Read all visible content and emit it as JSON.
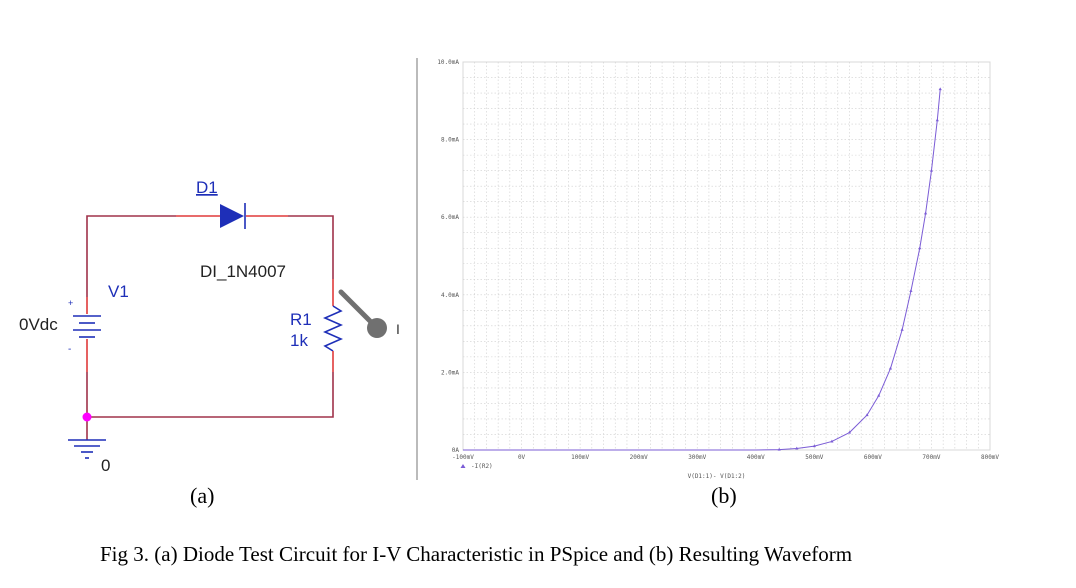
{
  "circuit": {
    "diode_ref": "D1",
    "diode_model": "DI_1N4007",
    "source_ref": "V1",
    "source_value": "0Vdc",
    "source_plus": "+",
    "source_minus": "-",
    "resistor_ref": "R1",
    "resistor_value": "1k",
    "probe_label": "I",
    "ground_label": "0"
  },
  "panel_labels": {
    "a": "(a)",
    "b": "(b)"
  },
  "caption": "Fig 3. (a) Diode Test Circuit for I-V Characteristic in PSpice and (b) Resulting Waveform",
  "colors": {
    "wire": "#a0324a",
    "pin": "#e03a3a",
    "component": "#1e2fb8",
    "node": "#ff00ff",
    "trace": "#7b5cd6",
    "probe": "#707070"
  },
  "chart_data": {
    "type": "line",
    "x_ticks": [
      "-100mV",
      "0V",
      "100mV",
      "200mV",
      "300mV",
      "400mV",
      "500mV",
      "600mV",
      "700mV",
      "800mV"
    ],
    "y_ticks": [
      "0A",
      "2.0mA",
      "4.0mA",
      "6.0mA",
      "8.0mA",
      "10.0mA"
    ],
    "xlim": [
      -100,
      800
    ],
    "ylim": [
      0,
      10
    ],
    "x_unit": "mV",
    "y_unit": "mA",
    "xlabel": "V(D1:1)- V(D1:2)",
    "legend": "-I(R2)",
    "grid": true,
    "series": [
      {
        "name": "-I(R2)",
        "x": [
          -100,
          0,
          100,
          200,
          300,
          400,
          440,
          470,
          500,
          530,
          560,
          590,
          610,
          630,
          650,
          665,
          680,
          690,
          700,
          710,
          715
        ],
        "y": [
          0,
          0,
          0,
          0,
          0,
          0,
          0.01,
          0.04,
          0.1,
          0.22,
          0.45,
          0.9,
          1.4,
          2.1,
          3.1,
          4.1,
          5.2,
          6.1,
          7.2,
          8.5,
          9.3
        ]
      }
    ]
  }
}
